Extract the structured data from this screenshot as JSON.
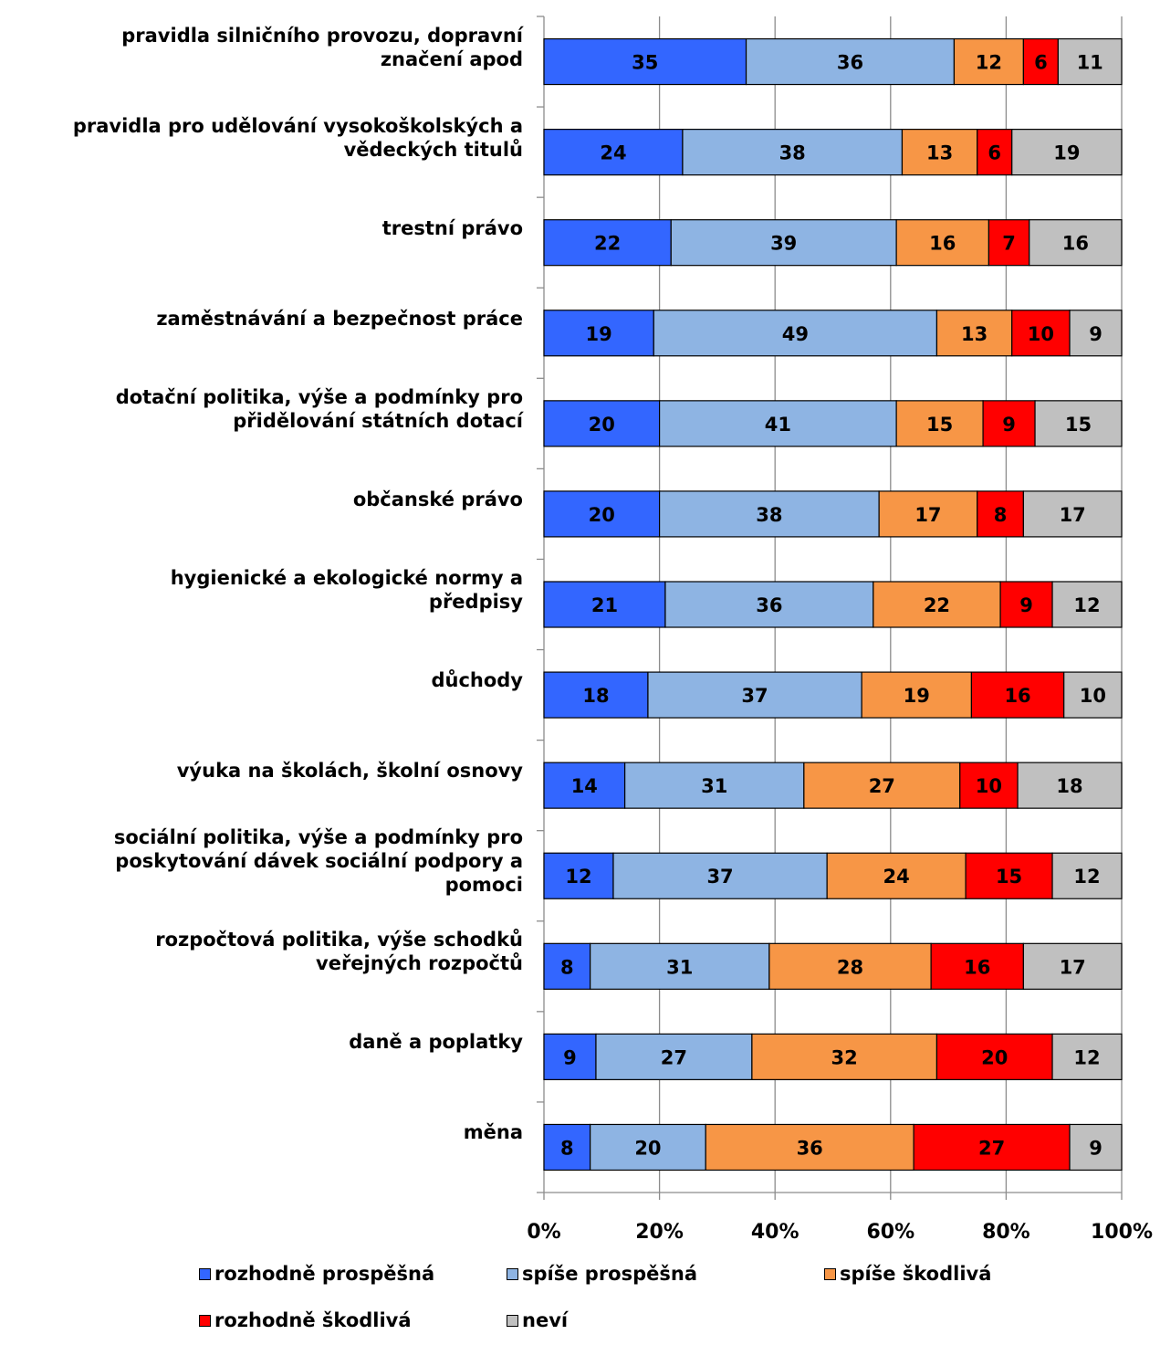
{
  "chart_data": {
    "type": "bar",
    "orientation": "horizontal",
    "stacked": true,
    "percent": true,
    "categories": [
      "pravidla silničního provozu, dopravní značení apod",
      "pravidla pro udělování vysokoškolských a vědeckých titulů",
      "trestní právo",
      "zaměstnávání a bezpečnost práce",
      "dotační politika, výše a podmínky pro přidělování státních dotací",
      "občanské právo",
      "hygienické a ekologické normy a předpisy",
      "důchody",
      "výuka na školách, školní osnovy",
      "sociální politika, výše a podmínky pro poskytování dávek sociální podpory a pomoci",
      "rozpočtová politika, výše schodků veřejných rozpočtů",
      "daně a poplatky",
      "měna"
    ],
    "category_lines": [
      [
        "pravidla silničního provozu, dopravní",
        "značení apod"
      ],
      [
        "pravidla pro udělování vysokoškolských a",
        "vědeckých titulů"
      ],
      [
        "trestní právo"
      ],
      [
        "zaměstnávání a bezpečnost práce"
      ],
      [
        "dotační politika, výše a podmínky pro",
        "přidělování státních dotací"
      ],
      [
        "občanské právo"
      ],
      [
        "hygienické a ekologické normy a",
        "předpisy"
      ],
      [
        "důchody"
      ],
      [
        "výuka na školách, školní osnovy"
      ],
      [
        "sociální politika, výše a podmínky pro",
        "poskytování dávek sociální podpory a",
        "pomoci"
      ],
      [
        "rozpočtová politika, výše schodků",
        "veřejných rozpočtů"
      ],
      [
        "daně a poplatky"
      ],
      [
        "měna"
      ]
    ],
    "series": [
      {
        "name": "rozhodně prospěšná",
        "color": "#3366FF",
        "values": [
          35,
          24,
          22,
          19,
          20,
          20,
          21,
          18,
          14,
          12,
          8,
          9,
          8
        ]
      },
      {
        "name": "spíše prospěšná",
        "color": "#8EB4E3",
        "values": [
          36,
          38,
          39,
          49,
          41,
          38,
          36,
          37,
          31,
          37,
          31,
          27,
          20
        ]
      },
      {
        "name": "spíše škodlivá",
        "color": "#F79646",
        "values": [
          12,
          13,
          16,
          13,
          15,
          17,
          22,
          19,
          27,
          24,
          28,
          32,
          36
        ]
      },
      {
        "name": "rozhodně škodlivá",
        "color": "#FF0000",
        "values": [
          6,
          6,
          7,
          10,
          9,
          8,
          9,
          16,
          10,
          15,
          16,
          20,
          27
        ]
      },
      {
        "name": "neví",
        "color": "#C0C0C0",
        "values": [
          11,
          19,
          16,
          9,
          15,
          17,
          12,
          10,
          18,
          12,
          17,
          12,
          9
        ]
      }
    ],
    "x_ticks": [
      "0%",
      "20%",
      "40%",
      "60%",
      "80%",
      "100%"
    ],
    "xlim": [
      0,
      100
    ],
    "grid": true,
    "legend_position": "bottom"
  }
}
